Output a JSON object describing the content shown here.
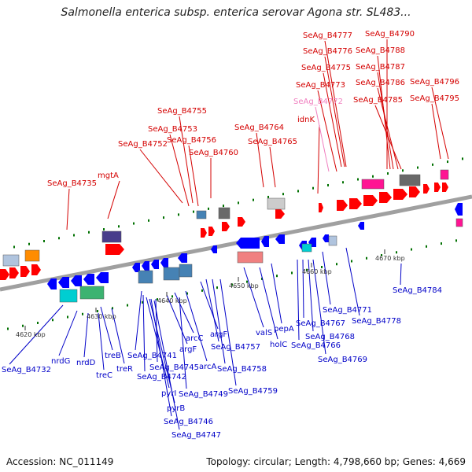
{
  "title": "Salmonella enterica subsp. enterica serovar Agona str. SL483...",
  "footer": {
    "accession": "Accession: NC_011149",
    "summary": "Topology: circular; Length: 4,798,660 bp; Genes: 4,669"
  },
  "colors": {
    "forward_label": "#d40000",
    "reverse_label": "#0000c8",
    "pink_label": "#f080c0",
    "forward_gene": "#ff0000",
    "reverse_gene": "#0000ff",
    "backbone": "#a0a0a0",
    "tick": "#007000"
  },
  "ruler": [
    {
      "label": "4620 kbp"
    },
    {
      "label": "4630 kbp"
    },
    {
      "label": "4640 kbp"
    },
    {
      "label": "4650 kbp"
    },
    {
      "label": "4660 kbp"
    },
    {
      "label": "4670 kbp"
    }
  ],
  "forward_labels": [
    {
      "text": "SeAg_B4735"
    },
    {
      "text": "mgtA"
    },
    {
      "text": "SeAg_B4752"
    },
    {
      "text": "SeAg_B4753"
    },
    {
      "text": "SeAg_B4755"
    },
    {
      "text": "SeAg_B4756"
    },
    {
      "text": "SeAg_B4760"
    },
    {
      "text": "SeAg_B4764"
    },
    {
      "text": "SeAg_B4765"
    },
    {
      "text": "idnK"
    },
    {
      "text": "SeAg_B4772"
    },
    {
      "text": "SeAg_B4773"
    },
    {
      "text": "SeAg_B4775"
    },
    {
      "text": "SeAg_B4776"
    },
    {
      "text": "SeAg_B4777"
    },
    {
      "text": "SeAg_B4785"
    },
    {
      "text": "SeAg_B4786"
    },
    {
      "text": "SeAg_B4787"
    },
    {
      "text": "SeAg_B4788"
    },
    {
      "text": "SeAg_B4790"
    },
    {
      "text": "SeAg_B4795"
    },
    {
      "text": "SeAg_B4796"
    }
  ],
  "reverse_labels": [
    {
      "text": "SeAg_B4732"
    },
    {
      "text": "nrdG"
    },
    {
      "text": "nrdD"
    },
    {
      "text": "treC"
    },
    {
      "text": "treB"
    },
    {
      "text": "treR"
    },
    {
      "text": "SeAg_B4741"
    },
    {
      "text": "SeAg_B4742"
    },
    {
      "text": "pyrI"
    },
    {
      "text": "pyrB"
    },
    {
      "text": "SeAg_B4746"
    },
    {
      "text": "SeAg_B4747"
    },
    {
      "text": "SeAg_B4745"
    },
    {
      "text": "argF"
    },
    {
      "text": "arcC"
    },
    {
      "text": "SeAg_B4749"
    },
    {
      "text": "arcA"
    },
    {
      "text": "argF"
    },
    {
      "text": "SeAg_B4757"
    },
    {
      "text": "SeAg_B4758"
    },
    {
      "text": "SeAg_B4759"
    },
    {
      "text": "valS"
    },
    {
      "text": "holC"
    },
    {
      "text": "pepA"
    },
    {
      "text": "SeAg_B4767"
    },
    {
      "text": "SeAg_B4766"
    },
    {
      "text": "SeAg_B4768"
    },
    {
      "text": "SeAg_B4769"
    },
    {
      "text": "SeAg_B4771"
    },
    {
      "text": "SeAg_B4778"
    },
    {
      "text": "SeAg_B4784"
    }
  ]
}
